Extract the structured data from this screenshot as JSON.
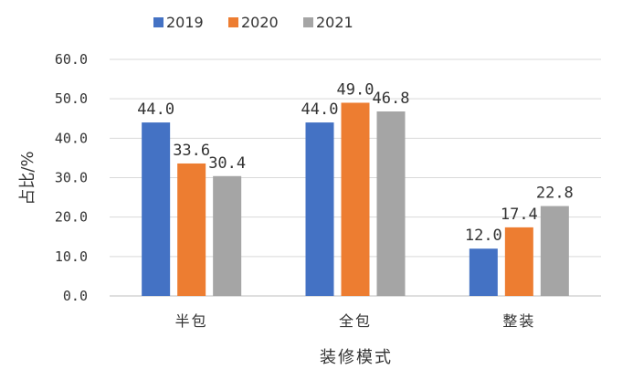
{
  "chart_data": {
    "type": "bar",
    "title": "",
    "xlabel": "装修模式",
    "ylabel": "占比/%",
    "categories": [
      "半包",
      "全包",
      "整装"
    ],
    "series": [
      {
        "name": "2019",
        "color": "#4472C4",
        "values": [
          44.0,
          44.0,
          12.0
        ],
        "labels": [
          "44.0",
          "44.0",
          "12.0"
        ]
      },
      {
        "name": "2020",
        "color": "#ED7D31",
        "values": [
          33.6,
          49.0,
          17.4
        ],
        "labels": [
          "33.6",
          "49.0",
          "17.4"
        ]
      },
      {
        "name": "2021",
        "color": "#A5A5A5",
        "values": [
          30.4,
          46.8,
          22.8
        ],
        "labels": [
          "30.4",
          "46.8",
          "22.8"
        ]
      }
    ],
    "ylim": [
      0,
      60
    ],
    "yticks": [
      "0.0",
      "10.0",
      "20.0",
      "30.0",
      "40.0",
      "50.0",
      "60.0"
    ],
    "grid": true,
    "legend_position": "top"
  }
}
